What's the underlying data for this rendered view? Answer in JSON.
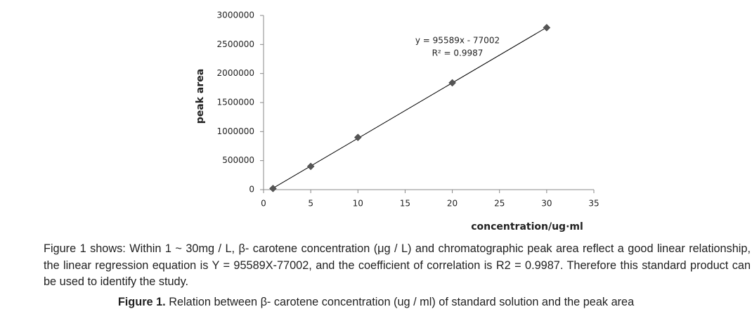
{
  "chart_data": {
    "type": "scatter",
    "y_label": "peak area",
    "x_label": "concentration/ug·ml",
    "x": [
      1,
      5,
      10,
      20,
      30
    ],
    "values": [
      20000,
      400000,
      900000,
      1840000,
      2790000
    ],
    "color": "#555555",
    "trendline": true,
    "equation": "y = 95589x - 77002",
    "r_squared": "R² = 0.9987",
    "xlim": [
      0,
      35
    ],
    "xticks": [
      0,
      5,
      10,
      15,
      20,
      25,
      30,
      35
    ],
    "ylim": [
      0,
      3000000
    ],
    "yticks": [
      0,
      500000,
      1000000,
      1500000,
      2000000,
      2500000,
      3000000
    ]
  },
  "description": "Figure 1 shows: Within 1 ~ 30mg / L, β- carotene concentration (μg / L) and chromatographic peak area reflect a good linear relationship, the linear regression equation is Y = 95589X-77002, and the coefficient of correlation is R2 = 0.9987. Therefore this standard product can be used to identify the study.",
  "caption": {
    "label": "Figure 1.",
    "text": "Relation between β- carotene concentration (ug / ml) of standard solution and the peak area"
  }
}
